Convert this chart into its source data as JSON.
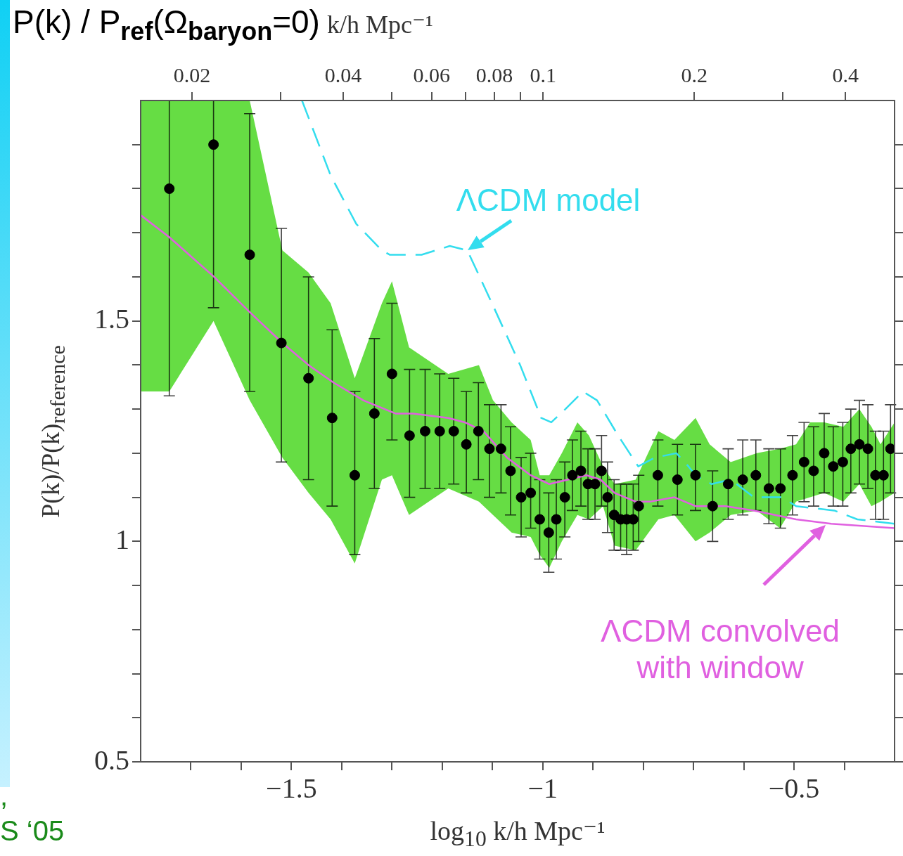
{
  "chart_data": {
    "type": "scatter",
    "title": "P(k) / P$_{ref}$(Ω$_{baryon}$=0)",
    "xlabel": "log$_{10}$ k/h Mpc⁻¹",
    "ylabel": "P(k)/P(k)$_{reference}$",
    "x2label": "k/h Mpc⁻¹",
    "xlim": [
      -1.8,
      -0.3
    ],
    "ylim": [
      0.5,
      2
    ],
    "x2lim": [
      0.0158,
      0.501
    ],
    "log": "x2",
    "xticks": [
      {
        "value": -1.7,
        "label": null
      },
      {
        "value": -1.6,
        "label": null
      },
      -1.5,
      {
        "value": -1.4,
        "label": null
      },
      {
        "value": -1.3,
        "label": null
      },
      {
        "value": -1.2,
        "label": null
      },
      {
        "value": -1.1,
        "label": null
      },
      -1,
      {
        "value": -0.9,
        "label": null
      },
      {
        "value": -0.8,
        "label": null
      },
      {
        "value": -0.7,
        "label": null
      },
      {
        "value": -0.6,
        "label": null
      },
      -0.5,
      {
        "value": -0.4,
        "label": null
      }
    ],
    "yticks": [
      0.5,
      {
        "value": 0.6,
        "label": null
      },
      {
        "value": 0.7,
        "label": null
      },
      {
        "value": 0.8,
        "label": null
      },
      {
        "value": 0.9,
        "label": null
      },
      1,
      {
        "value": 1.1,
        "label": null
      },
      {
        "value": 1.2,
        "label": null
      },
      {
        "value": 1.3,
        "label": null
      },
      {
        "value": 1.4,
        "label": null
      },
      1.5,
      {
        "value": 1.6,
        "label": null
      },
      {
        "value": 1.7,
        "label": null
      },
      {
        "value": 1.8,
        "label": null
      },
      {
        "value": 1.9,
        "label": null
      }
    ],
    "x2ticks": [
      0.02,
      {
        "value": 0.03,
        "label": null
      },
      0.04,
      {
        "value": 0.05,
        "label": null
      },
      0.06,
      {
        "value": 0.07,
        "label": null
      },
      0.08,
      {
        "value": 0.09,
        "label": null
      },
      0.1,
      0.2,
      {
        "value": 0.3,
        "label": null
      },
      0.4
    ],
    "annotations": [
      {
        "text": "ΛCDM model",
        "x": -1.15,
        "y": 1.66
      },
      {
        "text": "ΛCDM convolved with window",
        "x": -0.437,
        "y": 1.037
      },
      ",",
      "S ‘05"
    ],
    "series": [
      {
        "type": "line",
        "color": "#66dd44",
        "values": [
          null,
          null,
          null,
          null,
          null,
          null,
          null,
          null,
          null,
          null,
          null,
          null,
          null,
          null,
          null,
          null,
          null,
          null,
          null,
          null,
          null,
          null,
          null,
          null,
          null,
          null,
          null,
          null,
          null,
          null,
          null,
          null,
          null,
          null,
          null,
          null,
          null,
          null,
          null
        ],
        "x": [
          -1.8,
          -1.743,
          -1.655,
          -1.583,
          -1.518,
          -1.466,
          -1.422,
          -1.374,
          -1.32,
          -1.3,
          -1.266,
          -1.188,
          -1.127,
          -1.099,
          -1.062,
          -1.024,
          -1.006,
          -0.987,
          -0.962,
          -0.931,
          -0.908,
          -0.88,
          -0.857,
          -0.815,
          -0.77,
          -0.738,
          -0.696,
          -0.668,
          -0.626,
          -0.574,
          -0.528,
          -0.496,
          -0.468,
          -0.44,
          -0.402,
          -0.37,
          -0.346,
          -0.328,
          -0.3
        ],
        "lower": [
          1.34,
          1.34,
          1.5,
          1.32,
          1.19,
          1.11,
          1.05,
          0.95,
          1.14,
          1.15,
          1.06,
          1.12,
          1.09,
          1.06,
          1.02,
          1.01,
          0.97,
          0.94,
          1.0,
          1.06,
          1.05,
          1.08,
          0.99,
          0.98,
          1.05,
          1.06,
          1.0,
          1.02,
          1.06,
          1.07,
          1.03,
          1.09,
          1.1,
          1.11,
          1.09,
          1.13,
          1.08,
          1.09,
          1.11
        ],
        "upper": [
          2.0,
          2.0,
          2.0,
          2.0,
          1.66,
          1.61,
          1.54,
          1.37,
          1.54,
          1.59,
          1.44,
          1.38,
          1.4,
          1.32,
          1.27,
          1.23,
          1.15,
          1.15,
          1.2,
          1.27,
          1.24,
          1.17,
          1.13,
          1.14,
          1.25,
          1.23,
          1.28,
          1.22,
          1.18,
          1.2,
          1.21,
          1.22,
          1.27,
          1.27,
          1.26,
          1.3,
          1.26,
          1.22,
          1.27
        ]
      },
      {
        "color": "#000000",
        "marker": "circle",
        "x": [
          -1.743,
          -1.655,
          -1.583,
          -1.52,
          -1.466,
          -1.419,
          -1.374,
          -1.335,
          -1.3,
          -1.265,
          -1.234,
          -1.205,
          -1.177,
          -1.152,
          -1.128,
          -1.106,
          -1.083,
          -1.064,
          -1.043,
          -1.024,
          -1.006,
          -0.988,
          -0.973,
          -0.956,
          -0.941,
          -0.924,
          -0.91,
          -0.896,
          -0.883,
          -0.871,
          -0.858,
          -0.845,
          -0.833,
          -0.82,
          -0.809,
          -0.771,
          -0.732,
          -0.696,
          -0.662,
          -0.631,
          -0.602,
          -0.576,
          -0.55,
          -0.527,
          -0.503,
          -0.48,
          -0.461,
          -0.44,
          -0.422,
          -0.403,
          -0.387,
          -0.37,
          -0.353,
          -0.338,
          -0.322,
          -0.308
        ],
        "values": [
          1.8,
          1.9,
          1.65,
          1.45,
          1.37,
          1.28,
          1.15,
          1.29,
          1.38,
          1.24,
          1.25,
          1.25,
          1.25,
          1.22,
          1.25,
          1.21,
          1.21,
          1.16,
          1.1,
          1.11,
          1.05,
          1.02,
          1.05,
          1.1,
          1.15,
          1.16,
          1.13,
          1.13,
          1.16,
          1.1,
          1.06,
          1.05,
          1.05,
          1.05,
          1.08,
          1.15,
          1.14,
          1.15,
          1.08,
          1.13,
          1.14,
          1.15,
          1.12,
          1.12,
          1.15,
          1.18,
          1.16,
          1.2,
          1.17,
          1.18,
          1.21,
          1.22,
          1.21,
          1.15,
          1.15,
          1.21
        ],
        "errors": [
          [
            1.33,
            2.0
          ],
          [
            1.53,
            2.0
          ],
          [
            1.34,
            1.97
          ],
          [
            1.18,
            1.71
          ],
          [
            1.14,
            1.6
          ],
          [
            1.08,
            1.48
          ],
          [
            0.97,
            1.34
          ],
          [
            1.12,
            1.46
          ],
          [
            1.23,
            1.54
          ],
          [
            1.1,
            1.39
          ],
          [
            1.12,
            1.39
          ],
          [
            1.12,
            1.38
          ],
          [
            1.13,
            1.37
          ],
          [
            1.11,
            1.34
          ],
          [
            1.14,
            1.36
          ],
          [
            1.1,
            1.31
          ],
          [
            1.11,
            1.31
          ],
          [
            1.06,
            1.26
          ],
          [
            1.01,
            1.19
          ],
          [
            1.03,
            1.2
          ],
          [
            0.96,
            1.14
          ],
          [
            0.93,
            1.11
          ],
          [
            0.96,
            1.14
          ],
          [
            1.01,
            1.18
          ],
          [
            1.07,
            1.23
          ],
          [
            1.08,
            1.25
          ],
          [
            1.05,
            1.21
          ],
          [
            1.05,
            1.21
          ],
          [
            1.08,
            1.24
          ],
          [
            1.02,
            1.18
          ],
          [
            0.98,
            1.14
          ],
          [
            0.98,
            1.13
          ],
          [
            0.97,
            1.13
          ],
          [
            0.98,
            1.13
          ],
          [
            1.0,
            1.15
          ],
          [
            1.08,
            1.23
          ],
          [
            1.06,
            1.22
          ],
          [
            1.07,
            1.22
          ],
          [
            1.0,
            1.16
          ],
          [
            1.05,
            1.21
          ],
          [
            1.06,
            1.23
          ],
          [
            1.07,
            1.23
          ],
          [
            1.04,
            1.21
          ],
          [
            1.03,
            1.21
          ],
          [
            1.06,
            1.24
          ],
          [
            1.09,
            1.27
          ],
          [
            1.08,
            1.26
          ],
          [
            1.11,
            1.29
          ],
          [
            1.08,
            1.26
          ],
          [
            1.08,
            1.27
          ],
          [
            1.11,
            1.3
          ],
          [
            1.13,
            1.32
          ],
          [
            1.12,
            1.31
          ],
          [
            1.05,
            1.25
          ],
          [
            1.05,
            1.25
          ],
          [
            1.11,
            1.31
          ]
        ]
      },
      {
        "type": "line",
        "color": "#33ddee",
        "line_style": "dashed",
        "x": [
          -1.479,
          -1.422,
          -1.371,
          -1.32,
          -1.304,
          -1.241,
          -1.185,
          -1.15,
          -1.101,
          -1.045,
          -1.003,
          -0.983,
          -0.955,
          -0.92,
          -0.892,
          -0.85,
          -0.81,
          -0.777,
          -0.734,
          -0.71,
          -0.696,
          -0.664,
          -0.626,
          -0.58,
          -0.524,
          -0.496,
          -0.42,
          -0.374,
          -0.3
        ],
        "values": [
          2.0,
          1.83,
          1.72,
          1.66,
          1.65,
          1.65,
          1.67,
          1.66,
          1.54,
          1.4,
          1.28,
          1.27,
          1.3,
          1.34,
          1.32,
          1.24,
          1.17,
          1.19,
          1.2,
          1.17,
          1.15,
          1.13,
          1.14,
          1.1,
          1.1,
          1.08,
          1.07,
          1.05,
          1.04
        ]
      },
      {
        "type": "line",
        "color": "#e060e0",
        "x": [
          -1.8,
          -1.743,
          -1.654,
          -1.583,
          -1.518,
          -1.466,
          -1.416,
          -1.357,
          -1.293,
          -1.258,
          -1.188,
          -1.155,
          -1.118,
          -1.071,
          -1.024,
          -0.987,
          -0.95,
          -0.913,
          -0.885,
          -0.857,
          -0.815,
          -0.787,
          -0.738,
          -0.696,
          -0.636,
          -0.58,
          -0.496,
          -0.426,
          -0.3
        ],
        "values": [
          1.74,
          1.69,
          1.6,
          1.52,
          1.45,
          1.4,
          1.36,
          1.32,
          1.29,
          1.29,
          1.28,
          1.27,
          1.25,
          1.19,
          1.15,
          1.13,
          1.14,
          1.15,
          1.14,
          1.11,
          1.09,
          1.09,
          1.1,
          1.08,
          1.08,
          1.07,
          1.05,
          1.04,
          1.03
        ]
      }
    ]
  }
}
